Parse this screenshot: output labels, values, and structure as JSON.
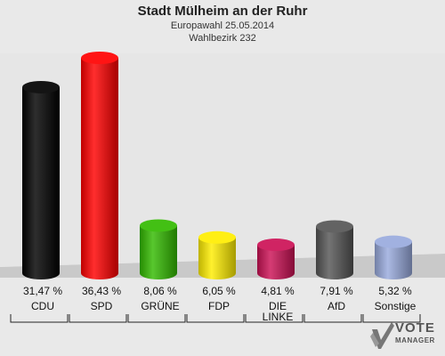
{
  "chart_data": {
    "type": "bar",
    "title": "Stadt Mülheim an der Ruhr",
    "subtitle_1": "Europawahl 25.05.2014",
    "subtitle_2": "Wahlbezirk 232",
    "categories": [
      "CDU",
      "SPD",
      "GRÜNE",
      "FDP",
      "DIE LINKE",
      "AfD",
      "Sonstige"
    ],
    "values": [
      31.47,
      36.43,
      8.06,
      6.05,
      4.81,
      7.91,
      5.32
    ],
    "value_labels": [
      "31,47 %",
      "36,43 %",
      "8,06 %",
      "6,05 %",
      "4,81 %",
      "7,91 %",
      "5,32 %"
    ],
    "colors": [
      "#000000",
      "#ff0000",
      "#33bb00",
      "#ffee00",
      "#cc1155",
      "#555555",
      "#99aadd"
    ],
    "ylim": [
      0,
      36.43
    ],
    "grid": false,
    "legend": "none"
  },
  "logo": {
    "line1": "VOTE",
    "line2": "MANAGER"
  }
}
